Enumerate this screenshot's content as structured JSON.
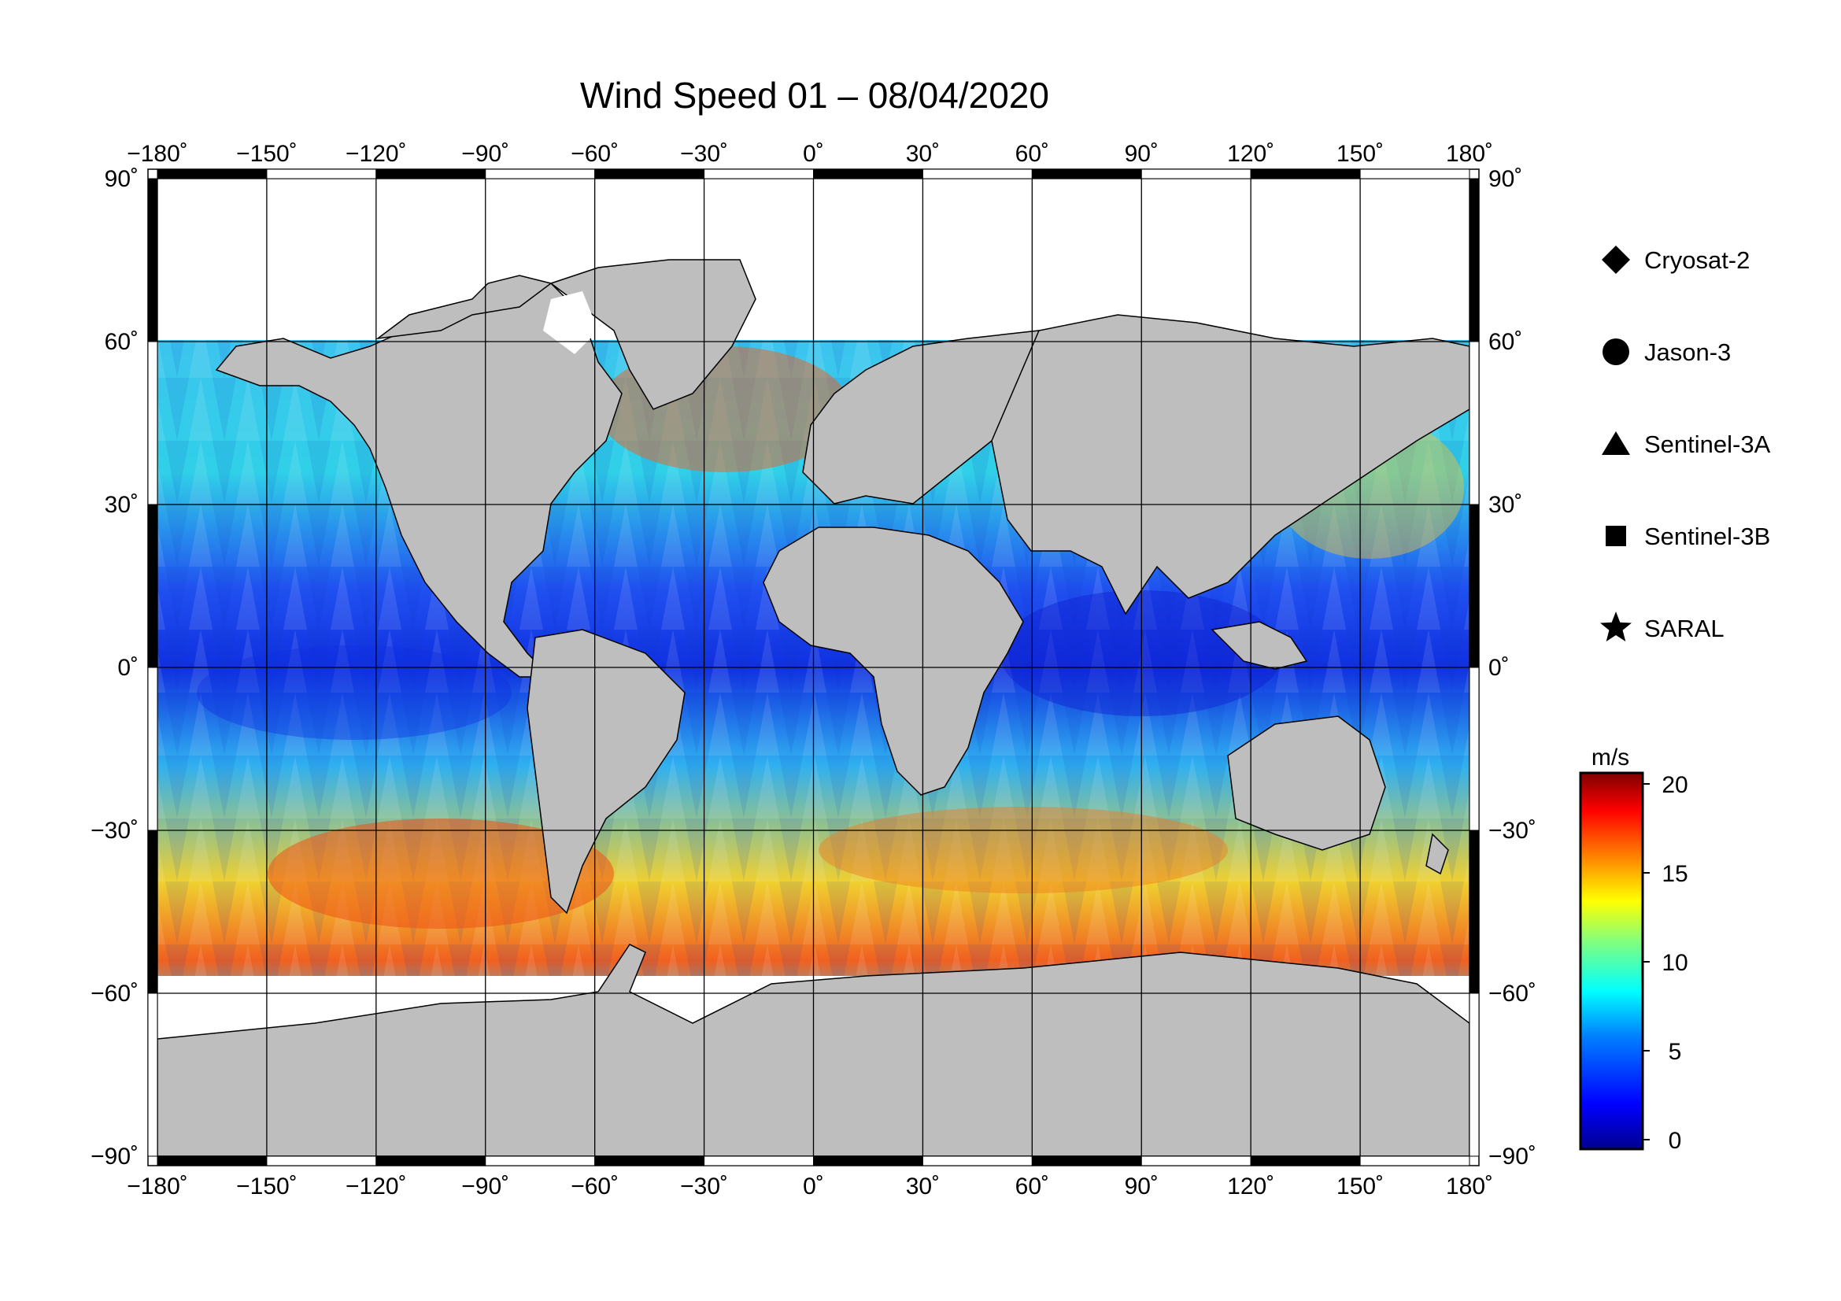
{
  "title": "Wind Speed 01 – 08/04/2020",
  "lon_ticks": [
    "−180˚",
    "−150˚",
    "−120˚",
    "−90˚",
    "−60˚",
    "−30˚",
    "0˚",
    "30˚",
    "60˚",
    "90˚",
    "120˚",
    "150˚",
    "180˚"
  ],
  "lat_ticks_left": [
    "90˚",
    "60˚",
    "30˚",
    "0˚",
    "−30˚",
    "−60˚",
    "−90˚"
  ],
  "lat_ticks_right": [
    "90˚",
    "60˚",
    "30˚",
    "0˚",
    "−30˚",
    "−60˚",
    "−90˚"
  ],
  "legend": [
    {
      "label": "Cryosat-2",
      "icon": "diamond-icon"
    },
    {
      "label": "Jason-3",
      "icon": "circle-icon"
    },
    {
      "label": "Sentinel-3A",
      "icon": "triangle-icon"
    },
    {
      "label": "Sentinel-3B",
      "icon": "square-icon"
    },
    {
      "label": "SARAL",
      "icon": "star-icon"
    }
  ],
  "colorbar": {
    "unit": "m/s",
    "ticks": [
      "20",
      "15",
      "10",
      "5",
      "0"
    ],
    "range": [
      0,
      20
    ],
    "colors": [
      "#00008f",
      "#0000ff",
      "#0080ff",
      "#00ffff",
      "#80ff80",
      "#ffff00",
      "#ff8000",
      "#ff0000",
      "#800000"
    ]
  },
  "map_colors": {
    "land": "#bebebe",
    "ice": "#ffffff",
    "ocean_calm": "#1e3cff",
    "ocean_mid": "#30c8f0",
    "ocean_high": "#f5d020",
    "ocean_storm": "#e83010"
  }
}
